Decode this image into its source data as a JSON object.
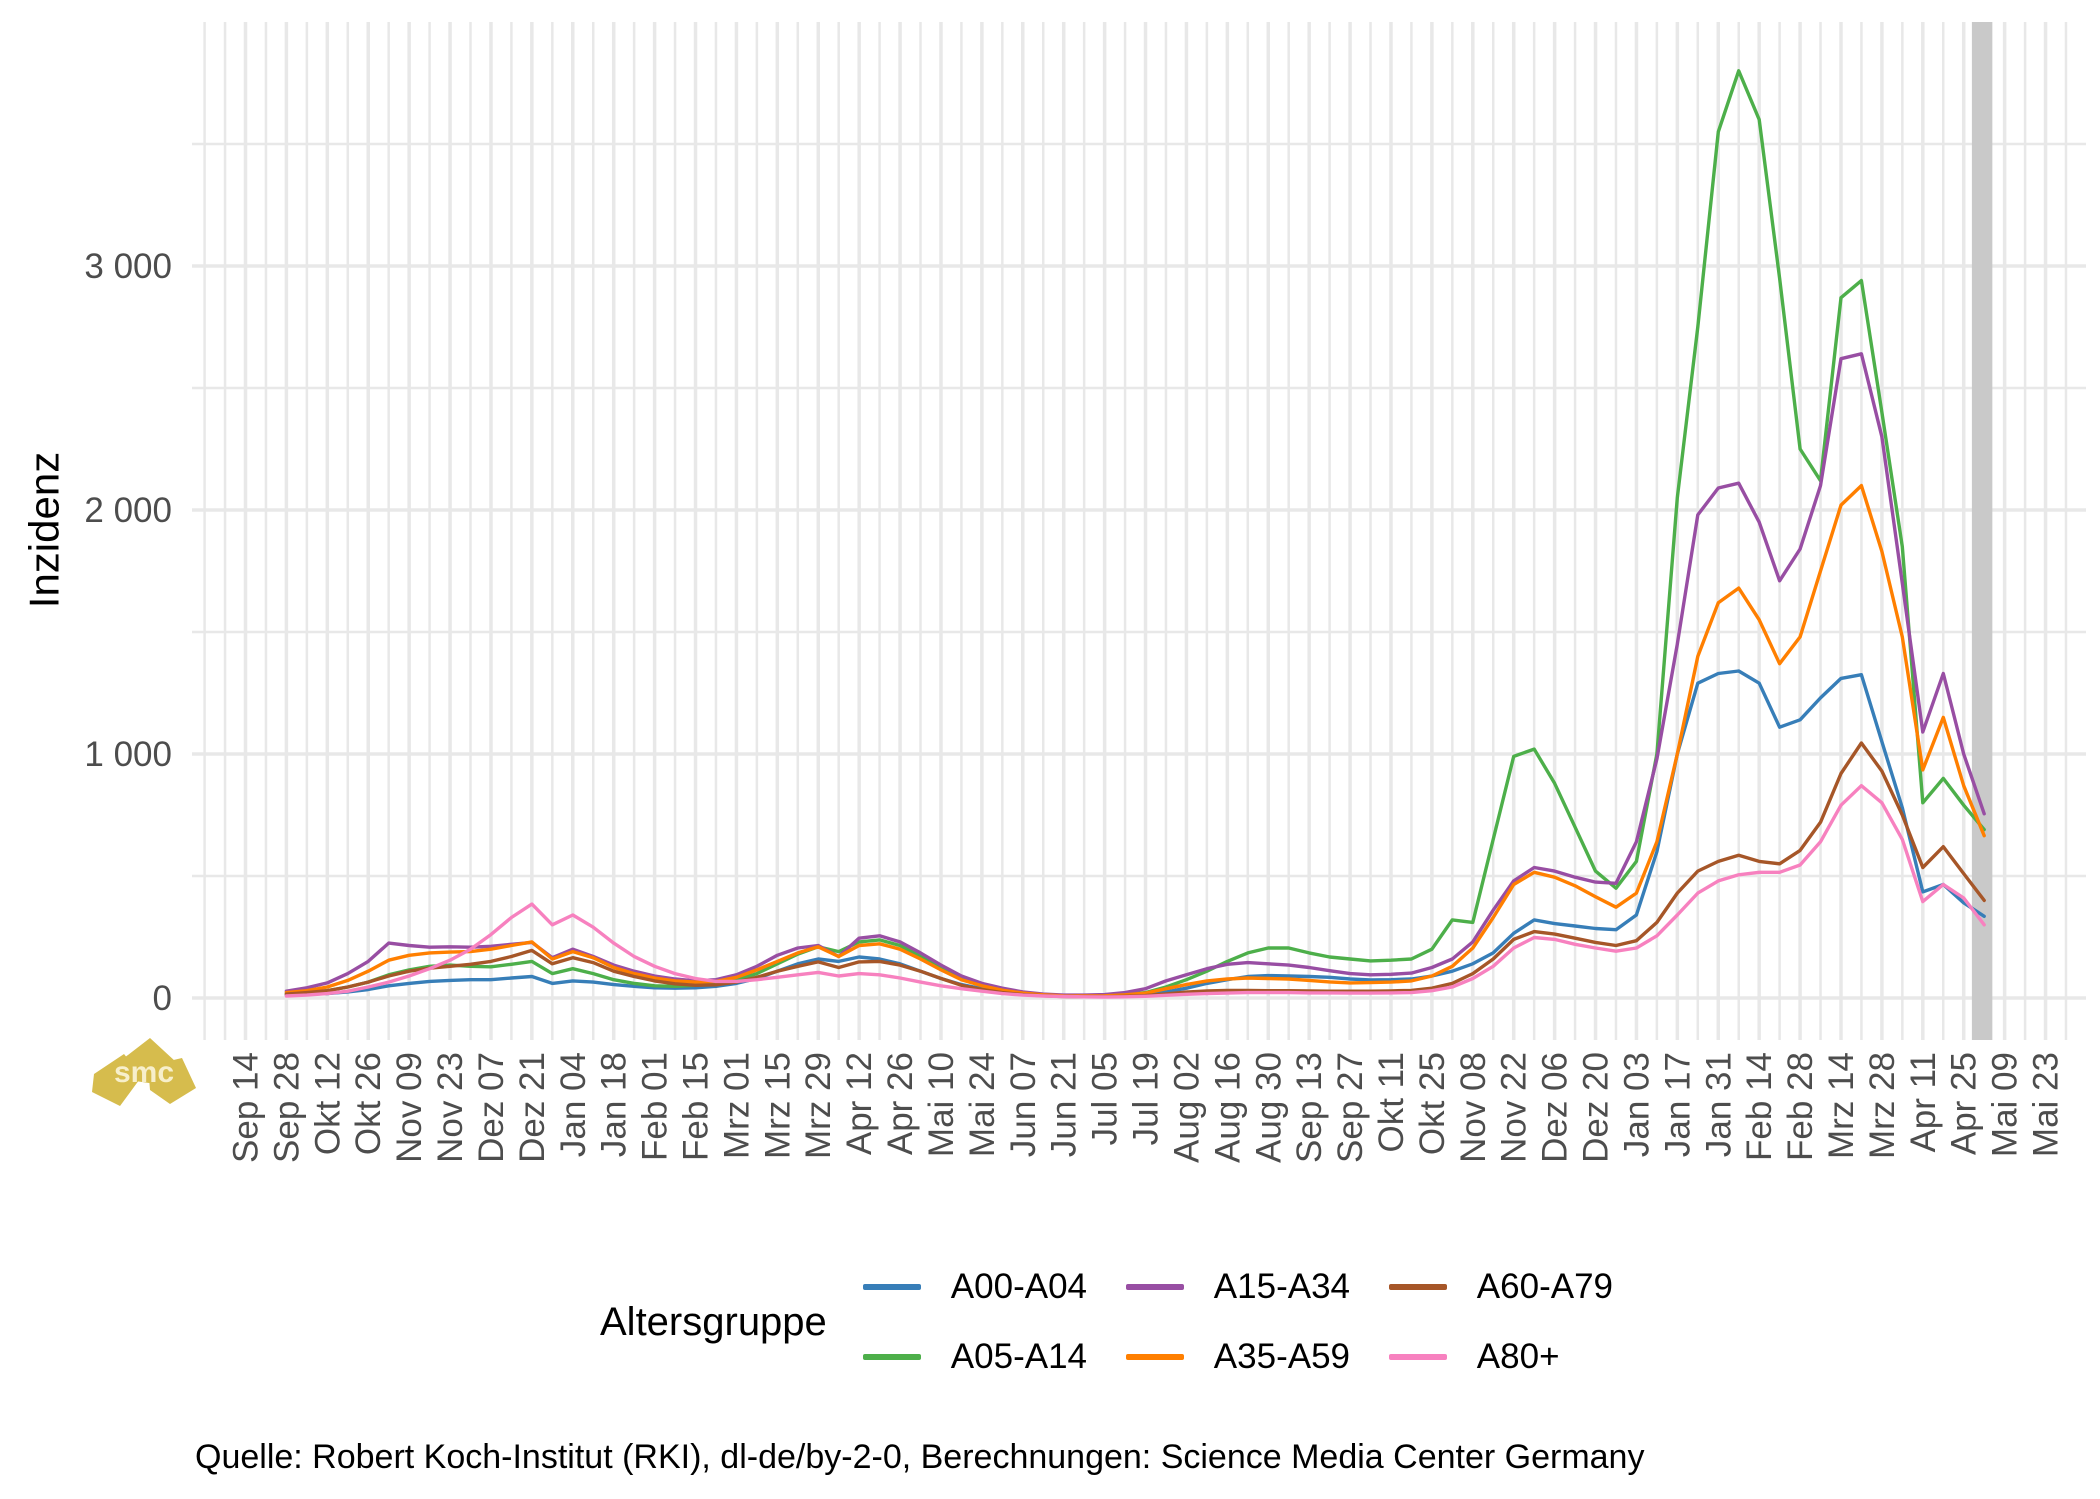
{
  "watermark": {
    "text": "smc",
    "color": "#d6bc4d"
  },
  "axes": {
    "y_title": "Inzidenz",
    "y_ticks": [
      {
        "value": 0,
        "label": "0"
      },
      {
        "value": 1000,
        "label": "1 000"
      },
      {
        "value": 2000,
        "label": "2 000"
      },
      {
        "value": 3000,
        "label": "3 000"
      }
    ],
    "y_minor": [
      500,
      1500,
      2500,
      3500
    ],
    "x_tick_labels": [
      "Sep 14",
      "Sep 28",
      "Okt 12",
      "Okt 26",
      "Nov 09",
      "Nov 23",
      "Dez 07",
      "Dez 21",
      "Jan 04",
      "Jan 18",
      "Feb 01",
      "Feb 15",
      "Mrz 01",
      "Mrz 15",
      "Mrz 29",
      "Apr 12",
      "Apr 26",
      "Mai 10",
      "Mai 24",
      "Jun 07",
      "Jun 21",
      "Jul 05",
      "Jul 19",
      "Aug 02",
      "Aug 16",
      "Aug 30",
      "Sep 13",
      "Sep 27",
      "Okt 11",
      "Okt 25",
      "Nov 08",
      "Nov 22",
      "Dez 06",
      "Dez 20",
      "Jan 03",
      "Jan 17",
      "Jan 31",
      "Feb 14",
      "Feb 28",
      "Mrz 14",
      "Mrz 28",
      "Apr 11",
      "Apr 25",
      "Mai 09",
      "Mai 23"
    ],
    "tick_label_color": "#4d4d4d",
    "grid_color": "#e8e8e8"
  },
  "legend": {
    "title": "Altersgruppe",
    "entries": [
      {
        "label": "A00-A04",
        "color": "#377eb8"
      },
      {
        "label": "A05-A14",
        "color": "#4daf4a"
      },
      {
        "label": "A15-A34",
        "color": "#984ea3"
      },
      {
        "label": "A35-A59",
        "color": "#ff7f00"
      },
      {
        "label": "A60-A79",
        "color": "#a65628"
      },
      {
        "label": "A80+",
        "color": "#f781bf"
      }
    ]
  },
  "source_note": "Quelle: Robert Koch-Institut (RKI), dl-de/by-2-0, Berechnungen: Science Media Center Germany",
  "recent_data_band": {
    "color": "#c9c9c9",
    "from_week": 82.4,
    "to_week": 83.4
  },
  "chart_data": {
    "type": "line",
    "ylabel": "Inzidenz",
    "ylim": [
      0,
      4000
    ],
    "grid": true,
    "legend_position": "bottom",
    "x_sampling": "weekly",
    "x_first_point_tick": "Sep 28",
    "x_last_point_tick": "Apr 25",
    "series": [
      {
        "name": "A00-A04",
        "color": "#377eb8",
        "values": [
          12,
          15,
          18,
          25,
          35,
          50,
          60,
          68,
          72,
          75,
          75,
          82,
          88,
          60,
          70,
          65,
          55,
          48,
          42,
          40,
          42,
          48,
          60,
          80,
          110,
          140,
          160,
          150,
          168,
          160,
          140,
          110,
          80,
          55,
          38,
          25,
          16,
          10,
          7,
          6,
          6,
          8,
          12,
          25,
          40,
          60,
          75,
          88,
          92,
          90,
          88,
          85,
          78,
          74,
          75,
          78,
          90,
          110,
          140,
          185,
          265,
          320,
          305,
          295,
          285,
          280,
          340,
          600,
          1000,
          1290,
          1330,
          1340,
          1290,
          1110,
          1140,
          1230,
          1310,
          1325,
          1050,
          780,
          435,
          465,
          390,
          335
        ]
      },
      {
        "name": "A05-A14",
        "color": "#4daf4a",
        "values": [
          18,
          22,
          30,
          45,
          65,
          95,
          115,
          130,
          135,
          130,
          128,
          138,
          150,
          100,
          120,
          100,
          75,
          60,
          50,
          48,
          52,
          58,
          75,
          100,
          140,
          180,
          210,
          190,
          230,
          238,
          215,
          170,
          120,
          80,
          55,
          35,
          20,
          13,
          10,
          9,
          10,
          14,
          22,
          45,
          75,
          110,
          150,
          185,
          205,
          205,
          185,
          168,
          160,
          152,
          155,
          160,
          200,
          320,
          310,
          650,
          990,
          1020,
          880,
          700,
          520,
          450,
          560,
          1000,
          2050,
          2750,
          3550,
          3800,
          3600,
          2950,
          2250,
          2120,
          2870,
          2940,
          2400,
          1850,
          800,
          900,
          790,
          690
        ]
      },
      {
        "name": "A15-A34",
        "color": "#984ea3",
        "values": [
          28,
          42,
          62,
          100,
          150,
          225,
          215,
          208,
          210,
          208,
          212,
          220,
          228,
          165,
          200,
          170,
          135,
          110,
          90,
          78,
          70,
          75,
          95,
          130,
          175,
          205,
          215,
          170,
          245,
          255,
          230,
          185,
          135,
          90,
          60,
          40,
          25,
          16,
          12,
          12,
          14,
          22,
          38,
          70,
          95,
          120,
          138,
          145,
          140,
          135,
          125,
          112,
          100,
          95,
          97,
          102,
          125,
          160,
          230,
          360,
          480,
          535,
          520,
          495,
          475,
          470,
          640,
          980,
          1450,
          1980,
          2090,
          2110,
          1950,
          1710,
          1840,
          2100,
          2620,
          2640,
          2300,
          1700,
          1090,
          1330,
          1000,
          755
        ]
      },
      {
        "name": "A35-A59",
        "color": "#ff7f00",
        "values": [
          22,
          30,
          45,
          72,
          110,
          155,
          175,
          185,
          188,
          190,
          200,
          215,
          230,
          160,
          190,
          165,
          125,
          100,
          82,
          70,
          65,
          68,
          85,
          115,
          150,
          185,
          210,
          170,
          215,
          222,
          200,
          160,
          115,
          75,
          50,
          32,
          20,
          13,
          9,
          8,
          9,
          13,
          20,
          38,
          55,
          70,
          78,
          82,
          80,
          78,
          72,
          66,
          62,
          63,
          65,
          70,
          90,
          130,
          205,
          330,
          465,
          515,
          495,
          460,
          415,
          372,
          430,
          640,
          1000,
          1400,
          1620,
          1680,
          1550,
          1370,
          1480,
          1750,
          2020,
          2100,
          1830,
          1480,
          935,
          1150,
          870,
          665
        ]
      },
      {
        "name": "A60-A79",
        "color": "#a65628",
        "values": [
          16,
          22,
          30,
          45,
          65,
          90,
          110,
          122,
          130,
          138,
          150,
          170,
          195,
          140,
          165,
          145,
          110,
          88,
          70,
          58,
          52,
          54,
          65,
          85,
          110,
          130,
          148,
          125,
          148,
          150,
          135,
          110,
          80,
          52,
          35,
          22,
          14,
          9,
          6,
          5,
          5,
          7,
          10,
          17,
          24,
          29,
          31,
          31,
          30,
          30,
          29,
          28,
          28,
          28,
          29,
          31,
          40,
          60,
          100,
          160,
          240,
          272,
          262,
          245,
          228,
          215,
          235,
          310,
          430,
          520,
          560,
          585,
          560,
          550,
          605,
          720,
          920,
          1045,
          930,
          750,
          535,
          620,
          510,
          400
        ]
      },
      {
        "name": "A80+",
        "color": "#f781bf",
        "values": [
          8,
          12,
          18,
          28,
          45,
          65,
          90,
          120,
          155,
          200,
          260,
          330,
          385,
          300,
          340,
          290,
          225,
          170,
          130,
          100,
          80,
          68,
          68,
          75,
          85,
          95,
          105,
          90,
          100,
          95,
          82,
          65,
          50,
          38,
          28,
          18,
          12,
          8,
          6,
          5,
          4,
          5,
          7,
          11,
          15,
          18,
          20,
          22,
          22,
          22,
          21,
          21,
          20,
          20,
          21,
          22,
          30,
          45,
          80,
          130,
          205,
          248,
          240,
          220,
          205,
          192,
          205,
          255,
          340,
          430,
          480,
          505,
          515,
          515,
          545,
          640,
          790,
          870,
          800,
          650,
          395,
          465,
          410,
          300
        ]
      }
    ]
  }
}
